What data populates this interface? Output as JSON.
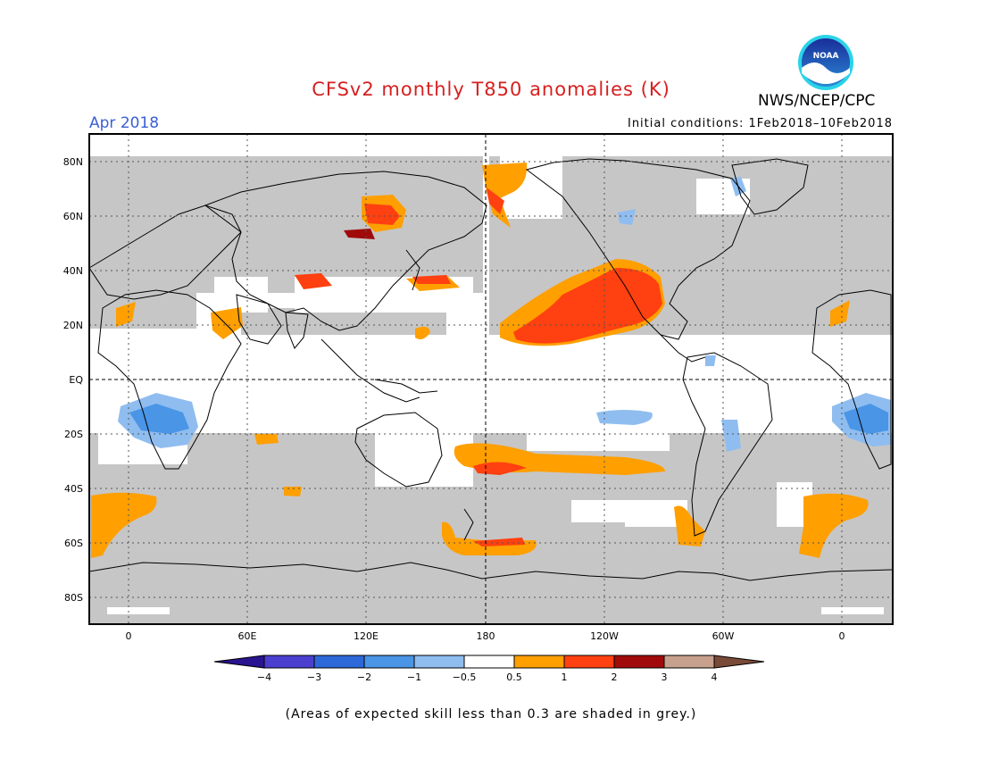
{
  "title": "CFSv2 monthly T850 anomalies (K)",
  "period": "Apr 2018",
  "initial_conditions": "Initial conditions: 1Feb2018–10Feb2018",
  "agency": "NWS/NCEP/CPC",
  "logo_text": "NOAA",
  "footnote": "(Areas of expected skill less than 0.3 are shaded in grey.)",
  "colors": {
    "title": "#d62020",
    "period": "#3a5fd6",
    "grey_mask": "#c6c6c6",
    "neg4": "#2a1490",
    "neg3": "#4b3fcf",
    "neg2": "#2d68d9",
    "neg1": "#4a95e6",
    "neg05": "#8fbdf0",
    "neutral": "#ffffff",
    "pos05": "#ff9f00",
    "pos1": "#ff4010",
    "pos2": "#a00a0a",
    "pos3": "#c8a08e",
    "pos4": "#7a4a38"
  },
  "map": {
    "lat_labels": [
      "80N",
      "60N",
      "40N",
      "20N",
      "EQ",
      "20S",
      "40S",
      "60S",
      "80S"
    ],
    "lon_labels": [
      "0",
      "60E",
      "120E",
      "180",
      "120W",
      "60W",
      "0"
    ],
    "colorbar_labels": [
      "−4",
      "−3",
      "−2",
      "−1",
      "−0.5",
      "0.5",
      "1",
      "2",
      "3",
      "4"
    ]
  }
}
